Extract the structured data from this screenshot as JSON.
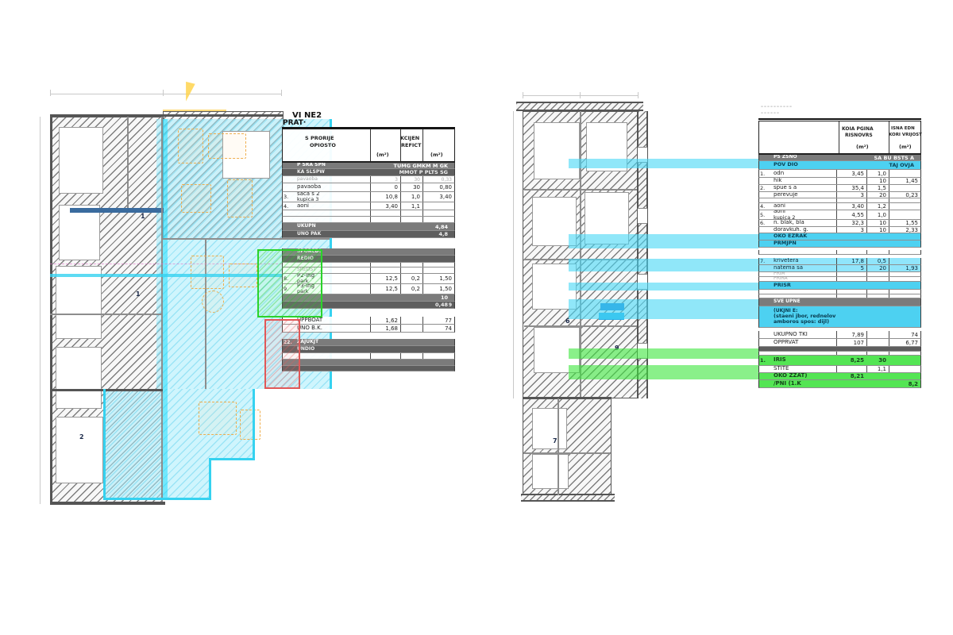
{
  "colors": {
    "cyan_accent": "#3ed2f0",
    "green_accent": "#2bd32b",
    "red_accent": "#e15858",
    "orange_furniture": "#efae4e",
    "gray_band": "#7b7b7b"
  },
  "left_sheet": {
    "title_line1": "VI NE2",
    "title_line2": "PRAT·",
    "plan": {
      "labels": [
        "2",
        "1",
        "1"
      ]
    },
    "table": {
      "header": {
        "name": "S PRORIJE",
        "name2": "OPIOSTO",
        "u1": "(m²)",
        "coef": "KCIJEN",
        "coef2": "REFICT",
        "u2": "(m²)"
      },
      "rows": [
        {
          "t": "g",
          "l": "P SRA SPN",
          "r": "TUMG GMKM M GK",
          "h": 8
        },
        {
          "t": "g2",
          "l": "KA SLSPW",
          "r": "MMOT P PLTS SG",
          "h": 9
        },
        {
          "t": "f",
          "l": "pavaoba",
          "a": "3",
          "k": "30",
          "v": "0,33",
          "h": 9
        },
        {
          "t": "h",
          "n": "",
          "l": "pavaoba",
          "a": "0",
          "k": "30",
          "v": "0,80",
          "h": 11
        },
        {
          "t": "h",
          "n": "3.",
          "l": "saća s 2",
          "l2": "kupica 3",
          "a": "10,8",
          "k": "1,0",
          "v": "3,40",
          "h": 13
        },
        {
          "t": "h",
          "n": "4.",
          "l": "aoni",
          "a": "3,40",
          "k": "1,1",
          "v": "",
          "h": 10
        },
        {
          "t": "f",
          "l": "",
          "h": 8
        },
        {
          "t": "f",
          "l": "",
          "h": 8
        },
        {
          "t": "g",
          "l": "UKUPN",
          "r": "4,84",
          "h": 10
        },
        {
          "t": "g2",
          "l": "UNO PAK",
          "r": "4,8",
          "h": 9
        },
        {
          "t": "sp",
          "h": 13
        },
        {
          "t": "g",
          "l": "SPORED!",
          "h": 9
        },
        {
          "t": "g2",
          "l": "REDIO",
          "h": 9
        },
        {
          "t": "f",
          "l": "",
          "h": 6
        },
        {
          "t": "f",
          "l": "SREDST",
          "h": 8
        },
        {
          "t": "h",
          "n": "8.",
          "l": "P2-ing",
          "l2": "park",
          "a": "12,5",
          "k": "0,2",
          "v": "1,50",
          "h": 13
        },
        {
          "t": "h",
          "n": "9.",
          "l": "P3-ing",
          "l2": "park",
          "a": "12,5",
          "k": "0,2",
          "v": "1,50",
          "h": 13
        },
        {
          "t": "g",
          "l": "",
          "r": "10",
          "h": 9
        },
        {
          "t": "g2",
          "l": "",
          "r": "0,48",
          "v": "9",
          "h": 9
        },
        {
          "t": "sp",
          "h": 10
        },
        {
          "t": "h",
          "l": "UPPBOAT",
          "a": "1,62",
          "v": "77",
          "h": 10
        },
        {
          "t": "h",
          "l": "UNO B.K.",
          "a": "1,68",
          "v": "74",
          "h": 10
        },
        {
          "t": "sp",
          "h": 8
        },
        {
          "t": "g",
          "n": "22.",
          "l": "ZAJUKJT",
          "h": 9
        },
        {
          "t": "g2",
          "l": "UNDIO",
          "h": 9
        },
        {
          "t": "f",
          "l": "",
          "h": 8
        },
        {
          "t": "g",
          "l": "",
          "h": 8
        },
        {
          "t": "g2",
          "l": "",
          "h": 7
        }
      ]
    }
  },
  "right_sheet": {
    "title_dash1": "––––––––––",
    "title_dash2": "––––––",
    "plan": {
      "labels": [
        "6",
        "9",
        "7"
      ]
    },
    "table": {
      "header": {
        "g1a": "KOIA PGINA",
        "g1b": "RISNOVRS",
        "u1": "(m²)",
        "g2a": "ISNA EDN",
        "g2b": "KORI VRIJOST",
        "u2": "(m²)"
      },
      "rows": [
        {
          "t": "g",
          "l": "PS ZSNO",
          "r": "SA BU BSTS A",
          "h": 8
        },
        {
          "t": "c",
          "l": "POV DIO",
          "r": "TAJ OVJA",
          "h": 11
        },
        {
          "t": "h",
          "n": "1.",
          "l": "odn",
          "a": "3,45",
          "k": "1,0",
          "v": "",
          "h": 10
        },
        {
          "t": "h",
          "l": "hik",
          "a": "",
          "k": "10",
          "v": "1,45",
          "h": 9
        },
        {
          "t": "h",
          "n": "2.",
          "l": "spue s a",
          "a": "35,4",
          "k": "1,5",
          "v": "",
          "h": 9
        },
        {
          "t": "h",
          "l": "perevuje",
          "a": "3",
          "k": "20",
          "v": "0,23",
          "h": 8
        },
        {
          "t": "f",
          "l": "",
          "h": 6
        },
        {
          "t": "h",
          "n": "4.",
          "l": "aoni",
          "a": "3,40",
          "k": "1,2",
          "v": "",
          "h": 9
        },
        {
          "t": "h",
          "n": "5.",
          "l": "aoni",
          "l2": "kupica 2",
          "a": "4,55",
          "k": "1,0",
          "v": "",
          "h": 12
        },
        {
          "t": "h",
          "n": "6.",
          "l": "n. blak, bla",
          "a": "32,3",
          "k": "10",
          "v": "1,55",
          "h": 9
        },
        {
          "t": "h",
          "l": "doravkuh. g.",
          "a": "3",
          "k": "10",
          "v": "2,33",
          "h": 8
        },
        {
          "t": "c",
          "l": "OKO EZRAK",
          "h": 9
        },
        {
          "t": "c",
          "l": "PRMJPN",
          "h": 9
        },
        {
          "t": "sp",
          "h": 3
        },
        {
          "t": "f",
          "l": "",
          "h": 6
        },
        {
          "t": "sp",
          "h": 4
        },
        {
          "t": "ch",
          "n": "7.",
          "l": "krivetera",
          "a": "17,8",
          "k": "0,5",
          "v": "",
          "h": 9
        },
        {
          "t": "ch",
          "l": "natema sa",
          "a": "5",
          "k": "20",
          "v": "1,93",
          "h": 9
        },
        {
          "t": "f",
          "l": "PRIM",
          "h": 6
        },
        {
          "t": "f",
          "l": "PRIRA",
          "h": 6
        },
        {
          "t": "c",
          "l": "PRISR",
          "h": 10
        },
        {
          "t": "f",
          "l": "",
          "h": 6
        },
        {
          "t": "f",
          "l": "",
          "h": 5
        },
        {
          "t": "g",
          "l": "SVE UPNE",
          "h": 10
        },
        {
          "t": "cb",
          "l": "(UKJNI E:",
          "l2": "(staeni jbor, rednelov",
          "l3": "amboros spos: dijl)",
          "h": 27
        },
        {
          "t": "sp",
          "h": 4
        },
        {
          "t": "h",
          "l": "UKUPNO TKI",
          "a": "7,89",
          "v": "74",
          "h": 10
        },
        {
          "t": "h",
          "l": "OPPRVAT",
          "a": "107",
          "v": "6,77",
          "h": 10
        },
        {
          "t": "g2",
          "l": "",
          "h": 6
        },
        {
          "t": "f",
          "l": "",
          "h": 5
        },
        {
          "t": "gr",
          "n": "1.",
          "l": "IRIS",
          "a": "8,25",
          "k": "30",
          "v": "",
          "h": 13
        },
        {
          "t": "h",
          "l": "STITE",
          "a": "",
          "k": "1,1",
          "v": "",
          "h": 9
        },
        {
          "t": "gr",
          "l": "OKO ZZAT)",
          "a": "8,21",
          "k": "",
          "v": "",
          "h": 9
        },
        {
          "t": "gr",
          "l": "/PNI (1.K",
          "a": "",
          "k": "",
          "v": "8,2",
          "h": 10
        }
      ]
    }
  }
}
